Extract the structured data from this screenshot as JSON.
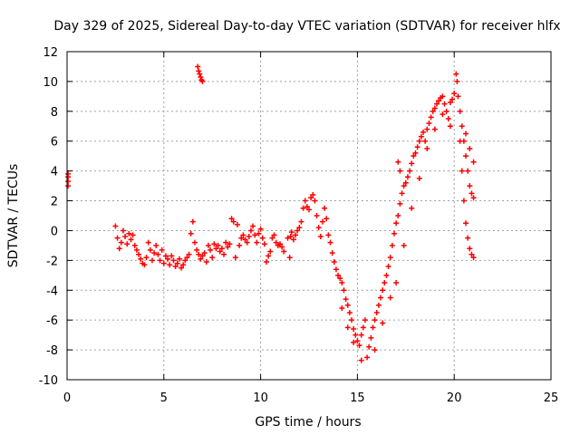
{
  "chart_data": {
    "type": "scatter",
    "title": "Day 329 of 2025, Sidereal Day-to-day VTEC variation (SDTVAR) for receiver hlfx",
    "xlabel": "GPS time / hours",
    "ylabel": "SDTVAR / TECUs",
    "xlim": [
      0,
      25
    ],
    "ylim": [
      -10,
      12
    ],
    "xticks": [
      0,
      5,
      10,
      15,
      20,
      25
    ],
    "yticks": [
      -10,
      -8,
      -6,
      -4,
      -2,
      0,
      2,
      4,
      6,
      8,
      10,
      12
    ],
    "grid": true,
    "marker": "plus",
    "color": "#ff0000",
    "series": [
      {
        "values": [
          [
            0.05,
            3.0
          ],
          [
            0.05,
            3.3
          ],
          [
            0.05,
            3.6
          ],
          [
            0.05,
            3.8
          ],
          [
            2.5,
            0.3
          ],
          [
            2.6,
            -0.5
          ],
          [
            2.7,
            -1.2
          ],
          [
            2.8,
            -0.8
          ],
          [
            2.9,
            0.0
          ],
          [
            3.0,
            -0.4
          ],
          [
            3.1,
            -0.9
          ],
          [
            3.2,
            -0.2
          ],
          [
            3.3,
            -0.6
          ],
          [
            3.4,
            -0.3
          ],
          [
            3.5,
            -1.0
          ],
          [
            3.6,
            -1.3
          ],
          [
            3.7,
            -1.6
          ],
          [
            3.8,
            -1.9
          ],
          [
            3.9,
            -2.2
          ],
          [
            4.0,
            -2.3
          ],
          [
            4.1,
            -1.8
          ],
          [
            4.2,
            -0.8
          ],
          [
            4.3,
            -1.3
          ],
          [
            4.4,
            -2.0
          ],
          [
            4.5,
            -1.5
          ],
          [
            4.6,
            -1.0
          ],
          [
            4.7,
            -1.6
          ],
          [
            4.8,
            -2.0
          ],
          [
            4.9,
            -1.3
          ],
          [
            5.0,
            -2.2
          ],
          [
            5.1,
            -1.7
          ],
          [
            5.2,
            -1.9
          ],
          [
            5.3,
            -2.3
          ],
          [
            5.4,
            -1.7
          ],
          [
            5.5,
            -2.0
          ],
          [
            5.6,
            -2.4
          ],
          [
            5.7,
            -2.2
          ],
          [
            5.8,
            -1.9
          ],
          [
            5.9,
            -2.5
          ],
          [
            6.0,
            -2.3
          ],
          [
            6.1,
            -2.0
          ],
          [
            6.2,
            -1.8
          ],
          [
            6.3,
            -1.6
          ],
          [
            6.4,
            -0.2
          ],
          [
            6.5,
            0.6
          ],
          [
            6.6,
            -0.8
          ],
          [
            6.7,
            -1.3
          ],
          [
            6.8,
            -1.6
          ],
          [
            6.9,
            -1.9
          ],
          [
            7.0,
            -1.7
          ],
          [
            7.1,
            -1.5
          ],
          [
            7.2,
            -2.1
          ],
          [
            7.3,
            -1.0
          ],
          [
            7.4,
            -1.3
          ],
          [
            7.5,
            -1.8
          ],
          [
            7.6,
            -0.9
          ],
          [
            7.7,
            -1.2
          ],
          [
            7.8,
            -1.0
          ],
          [
            6.75,
            11.0
          ],
          [
            6.8,
            10.7
          ],
          [
            6.85,
            10.5
          ],
          [
            6.9,
            10.3
          ],
          [
            6.95,
            10.1
          ],
          [
            7.0,
            10.0
          ],
          [
            7.9,
            -1.4
          ],
          [
            8.0,
            -1.2
          ],
          [
            8.1,
            -1.6
          ],
          [
            8.2,
            -0.8
          ],
          [
            8.3,
            -1.1
          ],
          [
            8.4,
            -0.9
          ],
          [
            8.5,
            0.8
          ],
          [
            8.6,
            0.6
          ],
          [
            8.7,
            -1.8
          ],
          [
            8.8,
            0.4
          ],
          [
            8.9,
            -1.0
          ],
          [
            9.0,
            -0.5
          ],
          [
            9.1,
            -0.3
          ],
          [
            9.2,
            -0.6
          ],
          [
            9.3,
            -0.8
          ],
          [
            9.4,
            -0.4
          ],
          [
            9.5,
            0.0
          ],
          [
            9.6,
            0.3
          ],
          [
            9.7,
            -0.3
          ],
          [
            9.8,
            -0.8
          ],
          [
            9.9,
            -0.2
          ],
          [
            10.0,
            0.1
          ],
          [
            10.1,
            -0.5
          ],
          [
            10.2,
            -0.9
          ],
          [
            10.3,
            -2.1
          ],
          [
            10.4,
            -1.7
          ],
          [
            10.5,
            -1.4
          ],
          [
            10.6,
            -0.5
          ],
          [
            10.7,
            -0.3
          ],
          [
            10.8,
            -0.8
          ],
          [
            10.9,
            -1.0
          ],
          [
            11.0,
            -0.9
          ],
          [
            11.1,
            -1.1
          ],
          [
            11.2,
            -1.4
          ],
          [
            11.4,
            -0.5
          ],
          [
            11.5,
            -1.8
          ],
          [
            11.55,
            -0.4
          ],
          [
            11.6,
            -0.1
          ],
          [
            11.7,
            -0.6
          ],
          [
            11.8,
            -0.3
          ],
          [
            11.9,
            0.0
          ],
          [
            12.0,
            0.2
          ],
          [
            12.1,
            0.6
          ],
          [
            12.2,
            1.5
          ],
          [
            12.3,
            2.0
          ],
          [
            12.4,
            1.6
          ],
          [
            12.5,
            1.4
          ],
          [
            12.6,
            2.2
          ],
          [
            12.7,
            2.4
          ],
          [
            12.8,
            2.0
          ],
          [
            12.9,
            1.0
          ],
          [
            13.0,
            0.2
          ],
          [
            13.1,
            -0.4
          ],
          [
            13.2,
            0.6
          ],
          [
            13.3,
            1.5
          ],
          [
            13.4,
            0.8
          ],
          [
            13.5,
            -0.3
          ],
          [
            13.6,
            -0.8
          ],
          [
            13.7,
            -1.5
          ],
          [
            13.8,
            -2.1
          ],
          [
            13.9,
            -2.6
          ],
          [
            14.0,
            -3.0
          ],
          [
            14.1,
            -3.2
          ],
          [
            14.2,
            -3.5
          ],
          [
            14.3,
            -4.0
          ],
          [
            14.4,
            -4.6
          ],
          [
            14.5,
            -5.0
          ],
          [
            14.6,
            -5.5
          ],
          [
            14.7,
            -6.0
          ],
          [
            14.8,
            -6.6
          ],
          [
            14.9,
            -7.0
          ],
          [
            15.0,
            -7.4
          ],
          [
            15.1,
            -7.7
          ],
          [
            15.2,
            -7.0
          ],
          [
            15.3,
            -6.5
          ],
          [
            15.4,
            -6.0
          ],
          [
            15.2,
            -8.7
          ],
          [
            15.5,
            -8.5
          ],
          [
            15.6,
            -7.8
          ],
          [
            15.7,
            -7.2
          ],
          [
            15.8,
            -6.5
          ],
          [
            15.9,
            -6.0
          ],
          [
            16.0,
            -5.5
          ],
          [
            16.1,
            -5.0
          ],
          [
            16.2,
            -4.5
          ],
          [
            16.3,
            -4.0
          ],
          [
            16.4,
            -3.5
          ],
          [
            16.5,
            -3.0
          ],
          [
            16.6,
            -2.4
          ],
          [
            16.7,
            -1.8
          ],
          [
            16.8,
            -1.0
          ],
          [
            16.9,
            -0.2
          ],
          [
            17.0,
            0.5
          ],
          [
            17.1,
            1.0
          ],
          [
            17.2,
            1.8
          ],
          [
            17.3,
            2.5
          ],
          [
            17.4,
            3.0
          ],
          [
            17.1,
            4.6
          ],
          [
            17.2,
            4.0
          ],
          [
            17.5,
            3.2
          ],
          [
            17.6,
            3.6
          ],
          [
            17.7,
            4.0
          ],
          [
            17.8,
            4.5
          ],
          [
            17.9,
            5.0
          ],
          [
            18.0,
            5.2
          ],
          [
            18.1,
            5.6
          ],
          [
            18.2,
            6.0
          ],
          [
            18.3,
            6.3
          ],
          [
            18.4,
            6.6
          ],
          [
            18.5,
            6.0
          ],
          [
            18.6,
            6.8
          ],
          [
            18.7,
            7.2
          ],
          [
            18.8,
            7.6
          ],
          [
            18.9,
            8.0
          ],
          [
            19.0,
            8.2
          ],
          [
            19.1,
            8.5
          ],
          [
            19.2,
            8.7
          ],
          [
            19.3,
            8.9
          ],
          [
            19.4,
            9.0
          ],
          [
            19.5,
            8.5
          ],
          [
            19.6,
            8.0
          ],
          [
            19.7,
            7.5
          ],
          [
            19.8,
            7.0
          ],
          [
            19.9,
            8.8
          ],
          [
            20.0,
            9.2
          ],
          [
            20.1,
            10.5
          ],
          [
            20.15,
            10.0
          ],
          [
            20.2,
            9.0
          ],
          [
            20.3,
            8.0
          ],
          [
            20.4,
            7.0
          ],
          [
            20.5,
            6.0
          ],
          [
            20.6,
            5.0
          ],
          [
            20.7,
            4.0
          ],
          [
            20.8,
            3.0
          ],
          [
            20.9,
            2.5
          ],
          [
            21.0,
            2.2
          ],
          [
            20.3,
            6.0
          ],
          [
            20.4,
            4.0
          ],
          [
            20.5,
            2.0
          ],
          [
            20.6,
            0.5
          ],
          [
            20.7,
            -0.5
          ],
          [
            20.8,
            -1.2
          ],
          [
            20.9,
            -1.6
          ],
          [
            21.0,
            -1.8
          ],
          [
            20.6,
            6.5
          ],
          [
            20.8,
            5.5
          ],
          [
            21.0,
            4.6
          ],
          [
            14.2,
            -5.2
          ],
          [
            14.5,
            -6.5
          ],
          [
            14.8,
            -7.5
          ],
          [
            15.9,
            -8.0
          ],
          [
            16.3,
            -6.2
          ],
          [
            16.7,
            -4.5
          ],
          [
            17.0,
            -3.5
          ],
          [
            17.4,
            -1.0
          ],
          [
            17.8,
            1.5
          ],
          [
            18.2,
            3.5
          ],
          [
            18.6,
            5.5
          ],
          [
            19.0,
            6.8
          ],
          [
            19.4,
            7.8
          ],
          [
            19.8,
            8.6
          ]
        ]
      }
    ]
  }
}
